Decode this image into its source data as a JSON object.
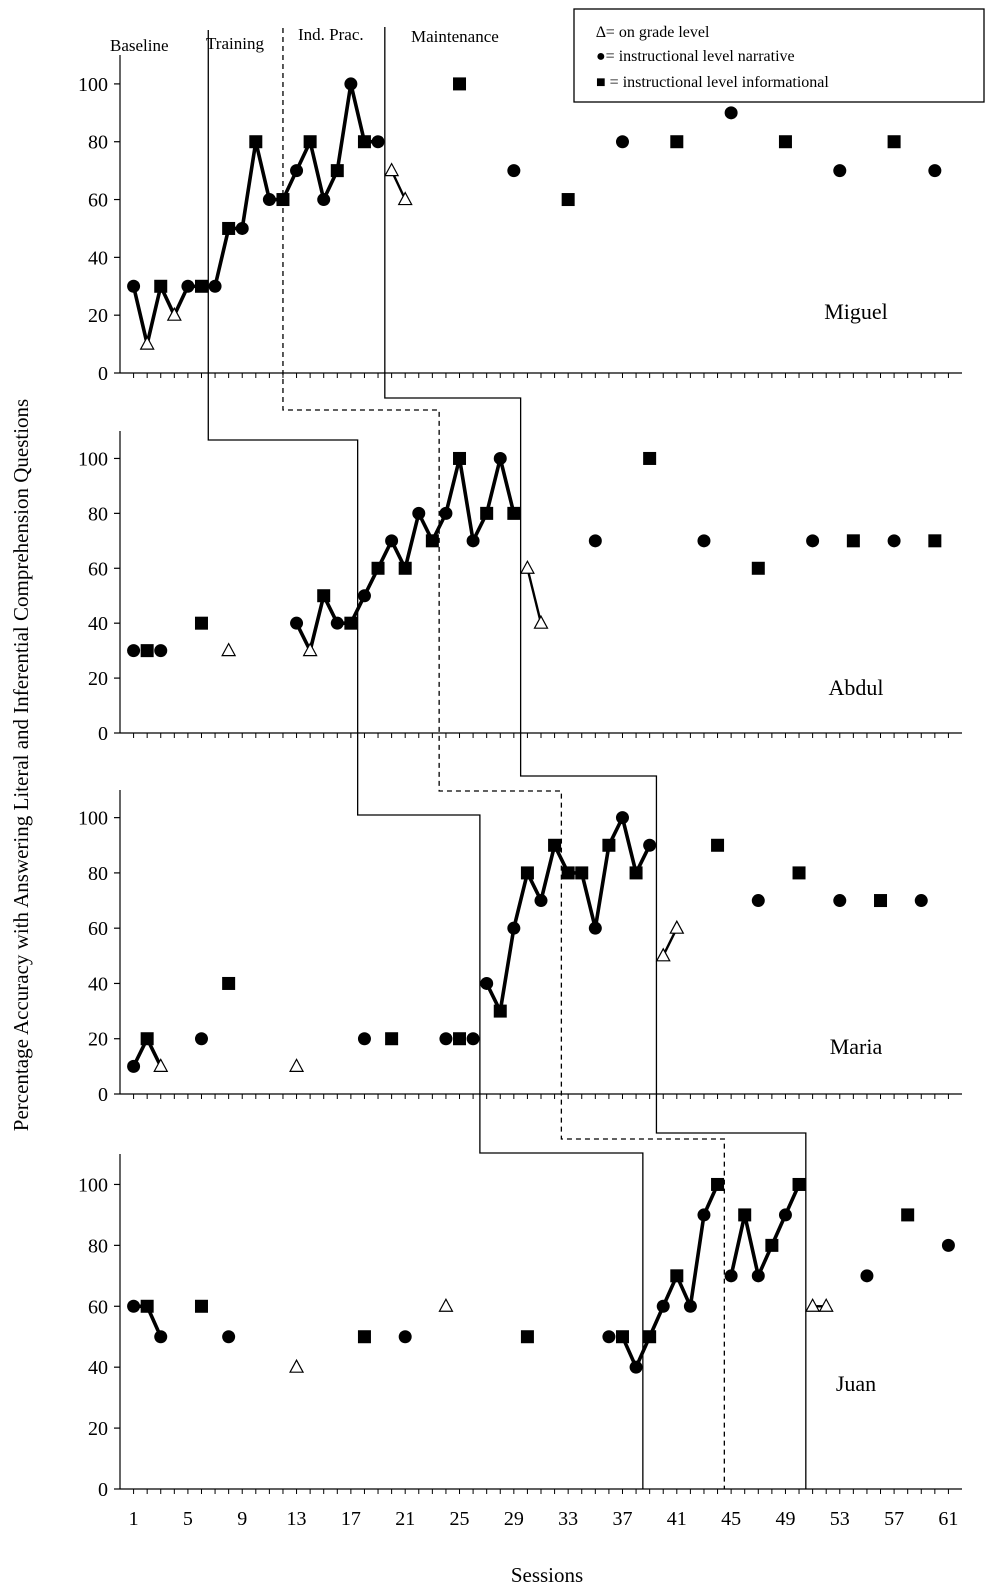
{
  "chart_data": {
    "type": "scatter",
    "subtype": "multiple-baseline-single-case",
    "xlabel": "Sessions",
    "ylabel": "Percentage Accuracy with Answering Literal and Inferential Comprehension Questions",
    "x_ticks": [
      "1",
      "5",
      "9",
      "13",
      "17",
      "21",
      "25",
      "29",
      "33",
      "37",
      "41",
      "45",
      "49",
      "53",
      "57",
      "61"
    ],
    "y_ticks": [
      "0",
      "20",
      "40",
      "60",
      "80",
      "100"
    ],
    "xlim": [
      0,
      62
    ],
    "ylim": [
      0,
      110
    ],
    "phases": [
      "Baseline",
      "Training",
      "Ind. Prac.",
      "Maintenance"
    ],
    "legend": {
      "grade": "∆= on grade level",
      "narrative": "●= instructional level narrative",
      "informational": "■  = instructional level informational"
    },
    "panels": [
      {
        "name": "Miguel",
        "training_start": 6.5,
        "indprac_start": 12,
        "maint_start": 19.5,
        "points": [
          {
            "x": 1,
            "y": 30,
            "m": "c"
          },
          {
            "x": 2,
            "y": 10,
            "m": "t"
          },
          {
            "x": 3,
            "y": 30,
            "m": "s"
          },
          {
            "x": 4,
            "y": 20,
            "m": "t"
          },
          {
            "x": 5,
            "y": 30,
            "m": "c"
          },
          {
            "x": 6,
            "y": 30,
            "m": "s"
          },
          {
            "x": 7,
            "y": 30,
            "m": "c"
          },
          {
            "x": 8,
            "y": 50,
            "m": "s"
          },
          {
            "x": 9,
            "y": 50,
            "m": "c"
          },
          {
            "x": 10,
            "y": 80,
            "m": "s"
          },
          {
            "x": 11,
            "y": 60,
            "m": "c"
          },
          {
            "x": 12,
            "y": 60,
            "m": "s"
          },
          {
            "x": 13,
            "y": 70,
            "m": "c"
          },
          {
            "x": 14,
            "y": 80,
            "m": "s"
          },
          {
            "x": 15,
            "y": 60,
            "m": "c"
          },
          {
            "x": 16,
            "y": 70,
            "m": "s"
          },
          {
            "x": 17,
            "y": 100,
            "m": "c"
          },
          {
            "x": 18,
            "y": 80,
            "m": "s"
          },
          {
            "x": 19,
            "y": 80,
            "m": "c"
          },
          {
            "x": 20,
            "y": 70,
            "m": "t"
          },
          {
            "x": 21,
            "y": 60,
            "m": "t"
          },
          {
            "x": 25,
            "y": 100,
            "m": "s"
          },
          {
            "x": 29,
            "y": 70,
            "m": "c"
          },
          {
            "x": 33,
            "y": 60,
            "m": "s"
          },
          {
            "x": 37,
            "y": 80,
            "m": "c"
          },
          {
            "x": 41,
            "y": 80,
            "m": "s"
          },
          {
            "x": 45,
            "y": 90,
            "m": "c"
          },
          {
            "x": 49,
            "y": 80,
            "m": "s"
          },
          {
            "x": 53,
            "y": 70,
            "m": "c"
          },
          {
            "x": 57,
            "y": 80,
            "m": "s"
          },
          {
            "x": 60,
            "y": 70,
            "m": "c"
          }
        ],
        "segments": [
          [
            0,
            18
          ],
          [
            19,
            20
          ]
        ]
      },
      {
        "name": "Abdul",
        "training_start": 17.5,
        "indprac_start": 23.5,
        "maint_start": 29.5,
        "points": [
          {
            "x": 1,
            "y": 30,
            "m": "c"
          },
          {
            "x": 2,
            "y": 30,
            "m": "s"
          },
          {
            "x": 3,
            "y": 30,
            "m": "c"
          },
          {
            "x": 6,
            "y": 40,
            "m": "s"
          },
          {
            "x": 8,
            "y": 30,
            "m": "t"
          },
          {
            "x": 13,
            "y": 40,
            "m": "c"
          },
          {
            "x": 14,
            "y": 30,
            "m": "t"
          },
          {
            "x": 15,
            "y": 50,
            "m": "s"
          },
          {
            "x": 16,
            "y": 40,
            "m": "c"
          },
          {
            "x": 17,
            "y": 40,
            "m": "s"
          },
          {
            "x": 18,
            "y": 50,
            "m": "c"
          },
          {
            "x": 19,
            "y": 60,
            "m": "s"
          },
          {
            "x": 20,
            "y": 70,
            "m": "c"
          },
          {
            "x": 21,
            "y": 60,
            "m": "s"
          },
          {
            "x": 22,
            "y": 80,
            "m": "c"
          },
          {
            "x": 23,
            "y": 70,
            "m": "s"
          },
          {
            "x": 24,
            "y": 80,
            "m": "c"
          },
          {
            "x": 25,
            "y": 100,
            "m": "s"
          },
          {
            "x": 26,
            "y": 70,
            "m": "c"
          },
          {
            "x": 27,
            "y": 80,
            "m": "s"
          },
          {
            "x": 28,
            "y": 100,
            "m": "c"
          },
          {
            "x": 29,
            "y": 80,
            "m": "s"
          },
          {
            "x": 30,
            "y": 60,
            "m": "t"
          },
          {
            "x": 31,
            "y": 40,
            "m": "t"
          },
          {
            "x": 35,
            "y": 70,
            "m": "c"
          },
          {
            "x": 39,
            "y": 100,
            "m": "s"
          },
          {
            "x": 43,
            "y": 70,
            "m": "c"
          },
          {
            "x": 47,
            "y": 60,
            "m": "s"
          },
          {
            "x": 51,
            "y": 70,
            "m": "c"
          },
          {
            "x": 54,
            "y": 70,
            "m": "s"
          },
          {
            "x": 57,
            "y": 70,
            "m": "c"
          },
          {
            "x": 60,
            "y": 70,
            "m": "s"
          }
        ],
        "segments": [
          [
            5,
            21
          ],
          [
            22,
            23
          ]
        ]
      },
      {
        "name": "Maria",
        "training_start": 26.5,
        "indprac_start": 32.5,
        "maint_start": 39.5,
        "points": [
          {
            "x": 1,
            "y": 10,
            "m": "c"
          },
          {
            "x": 2,
            "y": 20,
            "m": "s"
          },
          {
            "x": 3,
            "y": 10,
            "m": "t"
          },
          {
            "x": 6,
            "y": 20,
            "m": "c"
          },
          {
            "x": 8,
            "y": 40,
            "m": "s"
          },
          {
            "x": 13,
            "y": 10,
            "m": "t"
          },
          {
            "x": 18,
            "y": 20,
            "m": "c"
          },
          {
            "x": 20,
            "y": 20,
            "m": "s"
          },
          {
            "x": 24,
            "y": 20,
            "m": "c"
          },
          {
            "x": 25,
            "y": 20,
            "m": "s"
          },
          {
            "x": 26,
            "y": 20,
            "m": "c"
          },
          {
            "x": 27,
            "y": 40,
            "m": "c"
          },
          {
            "x": 28,
            "y": 30,
            "m": "s"
          },
          {
            "x": 29,
            "y": 60,
            "m": "c"
          },
          {
            "x": 30,
            "y": 80,
            "m": "s"
          },
          {
            "x": 31,
            "y": 70,
            "m": "c"
          },
          {
            "x": 32,
            "y": 90,
            "m": "s"
          },
          {
            "x": 33,
            "y": 80,
            "m": "s"
          },
          {
            "x": 34,
            "y": 80,
            "m": "s"
          },
          {
            "x": 35,
            "y": 60,
            "m": "c"
          },
          {
            "x": 36,
            "y": 90,
            "m": "s"
          },
          {
            "x": 37,
            "y": 100,
            "m": "c"
          },
          {
            "x": 38,
            "y": 80,
            "m": "s"
          },
          {
            "x": 39,
            "y": 90,
            "m": "c"
          },
          {
            "x": 40,
            "y": 50,
            "m": "t"
          },
          {
            "x": 41,
            "y": 60,
            "m": "t"
          },
          {
            "x": 44,
            "y": 90,
            "m": "s"
          },
          {
            "x": 47,
            "y": 70,
            "m": "c"
          },
          {
            "x": 50,
            "y": 80,
            "m": "s"
          },
          {
            "x": 53,
            "y": 70,
            "m": "c"
          },
          {
            "x": 56,
            "y": 70,
            "m": "s"
          },
          {
            "x": 59,
            "y": 70,
            "m": "c"
          }
        ],
        "segments": [
          [
            0,
            2
          ],
          [
            11,
            23
          ],
          [
            24,
            25
          ]
        ]
      },
      {
        "name": "Juan",
        "training_start": 38.5,
        "indprac_start": 44.5,
        "maint_start": 50.5,
        "points": [
          {
            "x": 1,
            "y": 60,
            "m": "c"
          },
          {
            "x": 2,
            "y": 60,
            "m": "s"
          },
          {
            "x": 3,
            "y": 50,
            "m": "c"
          },
          {
            "x": 6,
            "y": 60,
            "m": "s"
          },
          {
            "x": 8,
            "y": 50,
            "m": "c"
          },
          {
            "x": 13,
            "y": 40,
            "m": "t"
          },
          {
            "x": 18,
            "y": 50,
            "m": "s"
          },
          {
            "x": 21,
            "y": 50,
            "m": "c"
          },
          {
            "x": 24,
            "y": 60,
            "m": "t"
          },
          {
            "x": 30,
            "y": 50,
            "m": "s"
          },
          {
            "x": 36,
            "y": 50,
            "m": "c"
          },
          {
            "x": 37,
            "y": 50,
            "m": "s"
          },
          {
            "x": 38,
            "y": 40,
            "m": "c"
          },
          {
            "x": 39,
            "y": 50,
            "m": "s"
          },
          {
            "x": 40,
            "y": 60,
            "m": "c"
          },
          {
            "x": 41,
            "y": 70,
            "m": "s"
          },
          {
            "x": 42,
            "y": 60,
            "m": "c"
          },
          {
            "x": 43,
            "y": 90,
            "m": "c"
          },
          {
            "x": 44,
            "y": 100,
            "m": "s"
          },
          {
            "x": 45,
            "y": 70,
            "m": "c"
          },
          {
            "x": 46,
            "y": 90,
            "m": "s"
          },
          {
            "x": 47,
            "y": 70,
            "m": "c"
          },
          {
            "x": 48,
            "y": 80,
            "m": "s"
          },
          {
            "x": 49,
            "y": 90,
            "m": "c"
          },
          {
            "x": 50,
            "y": 100,
            "m": "s"
          },
          {
            "x": 51,
            "y": 60,
            "m": "t"
          },
          {
            "x": 52,
            "y": 60,
            "m": "t"
          },
          {
            "x": 55,
            "y": 70,
            "m": "c"
          },
          {
            "x": 58,
            "y": 90,
            "m": "s"
          },
          {
            "x": 61,
            "y": 80,
            "m": "c"
          }
        ],
        "segments": [
          [
            0,
            2
          ],
          [
            11,
            18
          ],
          [
            19,
            24
          ],
          [
            25,
            26
          ]
        ]
      }
    ]
  }
}
